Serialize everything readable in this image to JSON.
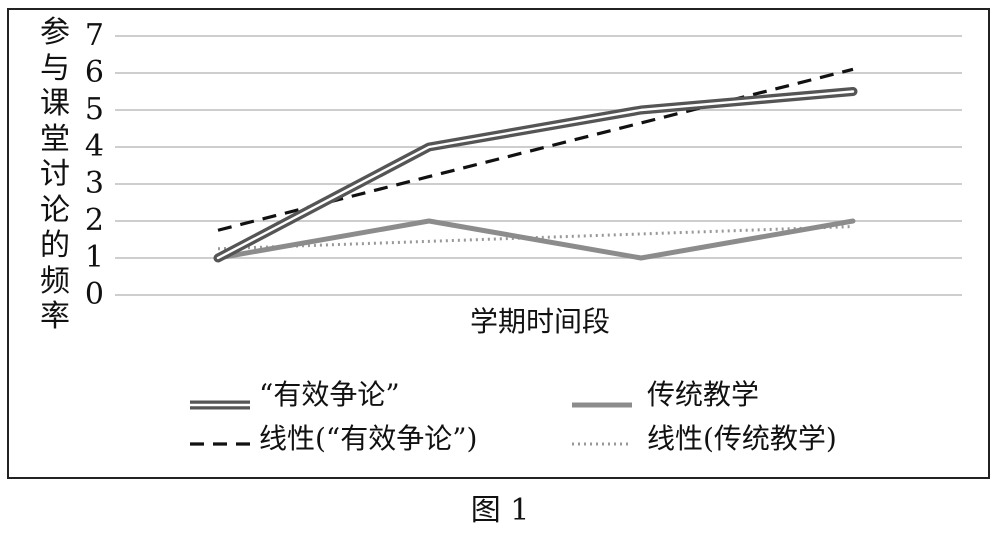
{
  "chart_data": {
    "type": "line",
    "title": "",
    "xlabel": "学期时间段",
    "ylabel": "参与课堂讨论的频率",
    "ylim": [
      0,
      7
    ],
    "yticks": [
      "0",
      "1",
      "2",
      "3",
      "4",
      "5",
      "6",
      "7"
    ],
    "x": [
      1,
      2,
      3,
      4
    ],
    "grid": true,
    "legend_position": "bottom",
    "series": [
      {
        "name": "“有效争论”",
        "values": [
          1,
          4,
          5,
          5.5
        ],
        "color": "#555555",
        "style": "double"
      },
      {
        "name": "传统教学",
        "values": [
          1,
          2,
          1,
          2
        ],
        "color": "#8c8c8c",
        "style": "solid"
      },
      {
        "name": "线性(“有效争论”)",
        "values": [
          1.75,
          3.2,
          4.65,
          6.1
        ],
        "color": "#111111",
        "style": "dashed"
      },
      {
        "name": "线性(传统教学)",
        "values": [
          1.25,
          1.45,
          1.65,
          1.85
        ],
        "color": "#999999",
        "style": "dotted"
      }
    ]
  },
  "caption": "图 1"
}
